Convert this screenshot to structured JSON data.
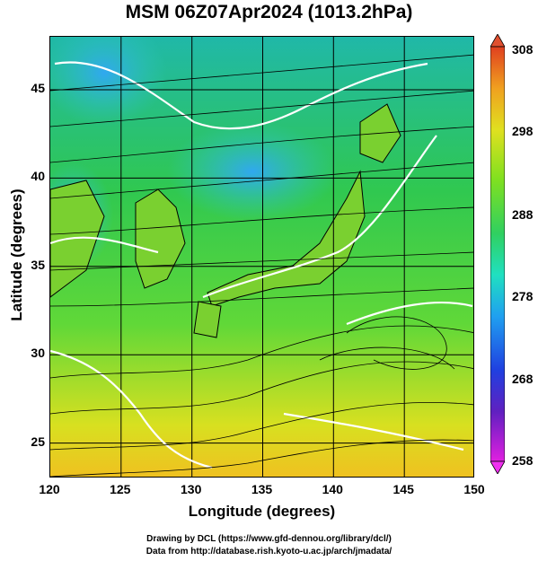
{
  "title": "MSM 06Z07Apr2024 (1013.2hPa)",
  "axes": {
    "xlabel": "Longitude (degrees)",
    "ylabel": "Latitude  (degrees)",
    "xticks": [
      "120",
      "125",
      "130",
      "135",
      "140",
      "145",
      "150"
    ],
    "yticks": [
      "45",
      "40",
      "35",
      "30",
      "25"
    ],
    "xlim": [
      120,
      150
    ],
    "ylim": [
      22.5,
      47.5
    ]
  },
  "colorbar": {
    "ticks": [
      "308",
      "298",
      "288",
      "278",
      "268",
      "258"
    ],
    "range": [
      258,
      308
    ],
    "colors": [
      "#e020e0",
      "#4020c0",
      "#2050e0",
      "#20c0e0",
      "#20e0a0",
      "#30d030",
      "#90e020",
      "#e0e020",
      "#f0a020",
      "#e04020"
    ]
  },
  "credits": {
    "line1": "Drawing by DCL (https://www.gfd-dennou.org/library/dcl/)",
    "line2": "Data from http://database.rish.kyoto-u.ac.jp/arch/jmadata/"
  }
}
